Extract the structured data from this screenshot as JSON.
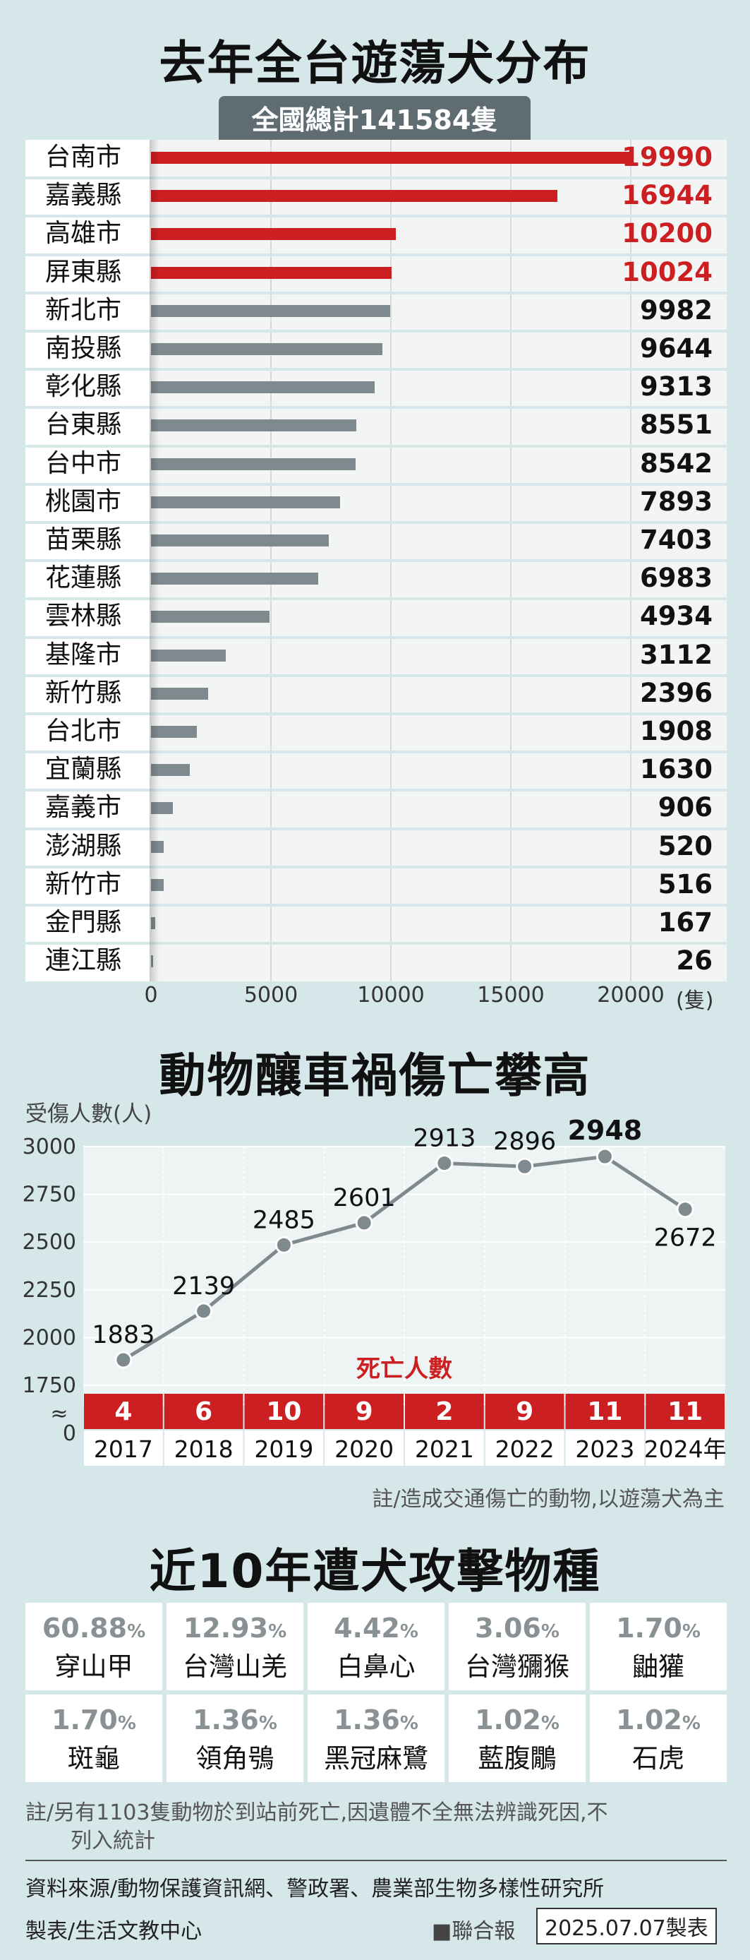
{
  "section1": {
    "title": "去年全台遊蕩犬分布",
    "total_label": "全國總計141584隻",
    "unit": "(隻)"
  },
  "chart_data": [
    {
      "type": "bar",
      "orientation": "horizontal",
      "title": "去年全台遊蕩犬分布",
      "subtitle": "全國總計141584隻",
      "xlabel": "(隻)",
      "xlim": [
        0,
        20000
      ],
      "xticks": [
        0,
        5000,
        10000,
        15000,
        20000
      ],
      "highlight_color": "#cc1f22",
      "default_color": "#7f8a8e",
      "categories": [
        "台南市",
        "嘉義縣",
        "高雄市",
        "屏東縣",
        "新北市",
        "南投縣",
        "彰化縣",
        "台東縣",
        "台中市",
        "桃園市",
        "苗栗縣",
        "花蓮縣",
        "雲林縣",
        "基隆市",
        "新竹縣",
        "台北市",
        "宜蘭縣",
        "嘉義市",
        "澎湖縣",
        "新竹市",
        "金門縣",
        "連江縣"
      ],
      "values": [
        19990,
        16944,
        10200,
        10024,
        9982,
        9644,
        9313,
        8551,
        8542,
        7893,
        7403,
        6983,
        4934,
        3112,
        2396,
        1908,
        1630,
        906,
        520,
        516,
        167,
        26
      ],
      "highlighted_count": 4
    },
    {
      "type": "line",
      "title": "動物釀車禍傷亡攀高",
      "ylabel": "受傷人數(人)",
      "ylim": [
        1750,
        3000
      ],
      "yticks": [
        0,
        1750,
        2000,
        2250,
        2500,
        2750,
        3000
      ],
      "axis_break": "≈",
      "x": [
        "2017",
        "2018",
        "2019",
        "2020",
        "2021",
        "2022",
        "2023",
        "2024年"
      ],
      "values": [
        1883,
        2139,
        2485,
        2601,
        2913,
        2896,
        2948,
        2672
      ],
      "deaths_label": "死亡人數",
      "deaths": [
        4,
        6,
        10,
        9,
        2,
        9,
        11,
        11
      ],
      "line_color": "#7f8a8e",
      "death_color": "#cc1f22",
      "note": "註/造成交通傷亡的動物,以遊蕩犬為主"
    }
  ],
  "section2": {
    "title": "動物釀車禍傷亡攀高"
  },
  "section3": {
    "title": "近10年遭犬攻擊物種",
    "items": [
      {
        "pct": "60.88",
        "sym": "%",
        "name": "穿山甲"
      },
      {
        "pct": "12.93",
        "sym": "%",
        "name": "台灣山羌"
      },
      {
        "pct": "4.42",
        "sym": "%",
        "name": "白鼻心"
      },
      {
        "pct": "3.06",
        "sym": "%",
        "name": "台灣獼猴"
      },
      {
        "pct": "1.70",
        "sym": "%",
        "name": "鼬獾"
      },
      {
        "pct": "1.70",
        "sym": "%",
        "name": "斑龜"
      },
      {
        "pct": "1.36",
        "sym": "%",
        "name": "領角鴞"
      },
      {
        "pct": "1.36",
        "sym": "%",
        "name": "黑冠麻鷺"
      },
      {
        "pct": "1.02",
        "sym": "%",
        "name": "藍腹鷳"
      },
      {
        "pct": "1.02",
        "sym": "%",
        "name": "石虎"
      }
    ],
    "note_line1": "註/另有1103隻動物於到站前死亡,因遺體不全無法辨識死因,不",
    "note_line2": "列入統計"
  },
  "footer": {
    "source": "資料來源/動物保護資訊網、警政署、農業部生物多樣性研究所",
    "made_by": "製表/生活文教中心",
    "brand": "■聯合報",
    "date": "2025.07.07製表"
  }
}
